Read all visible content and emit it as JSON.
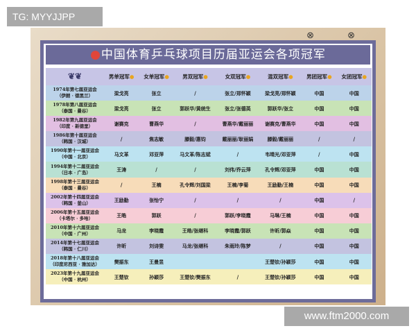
{
  "watermarks": {
    "top_left": "TG: MYYJJPP",
    "bottom_right": "www.ftm2000.com"
  },
  "title": "中国体育乒乓球项目历届亚运会各项冠军",
  "title_icon": "ping-pong-paddle-icon",
  "corner_icons": "⊗ ⊗",
  "headers": [
    "男单冠军",
    "女单冠军",
    "男双冠军",
    "女双冠军",
    "混双冠军",
    "男团冠军",
    "女团冠军"
  ],
  "header_ornament": "❦❦",
  "row_colors": [
    "#bcd3ea",
    "#c8e3b6",
    "#e2bfe2",
    "#c3c3e0",
    "#bde3f1",
    "#b9e1d3",
    "#f7dcb9",
    "#dcc2ea",
    "#f7cdd6",
    "#c8e3b6",
    "#c3c3e0",
    "#bde3f1",
    "#f6efbb"
  ],
  "rows": [
    {
      "event": "1974年第七届亚运会",
      "place": "（伊朗 · 德黑兰）",
      "cells": [
        "梁戈亮",
        "张立",
        "/",
        "张立/郑怀颖",
        "梁戈亮/郑怀颖",
        "中国",
        "中国"
      ]
    },
    {
      "event": "1978年第八届亚运会",
      "place": "（泰国 · 曼谷）",
      "cells": [
        "梁戈亮",
        "张立",
        "郭跃华/黄统生",
        "张立/张德英",
        "郭跃华/张立",
        "中国",
        "中国"
      ]
    },
    {
      "event": "1982年第九届亚运会",
      "place": "（印度 · 新德里）",
      "cells": [
        "谢赛克",
        "曹燕华",
        "/",
        "曹燕华/戴丽丽",
        "谢赛克/曹燕华",
        "中国",
        "中国"
      ]
    },
    {
      "event": "1986年第十届亚运会",
      "place": "（韩国 · 汉城）",
      "cells": [
        "/",
        "焦志敏",
        "滕毅/惠钧",
        "戴丽丽/耿丽娟",
        "滕毅/戴丽丽",
        "/",
        "/"
      ]
    },
    {
      "event": "1990年第十一届亚运会",
      "place": "（中国 · 北京）",
      "cells": [
        "马文革",
        "邓亚萍",
        "马文革/陈志斌",
        "/",
        "韦晴光/邓亚萍",
        "/",
        "中国"
      ]
    },
    {
      "event": "1994年第十二届亚运会",
      "place": "（日本 · 广岛）",
      "cells": [
        "王涛",
        "/",
        "/",
        "刘伟/乔云萍",
        "孔令辉/邓亚萍",
        "中国",
        "中国"
      ]
    },
    {
      "event": "1998年第十三届亚运会",
      "place": "（泰国 · 曼谷）",
      "cells": [
        "/",
        "王楠",
        "孔令辉/刘国梁",
        "王楠/李菊",
        "王励勤/王楠",
        "中国",
        "中国"
      ]
    },
    {
      "event": "2002年第十四届亚运会",
      "place": "（韩国 · 釜山）",
      "cells": [
        "王励勤",
        "张怡宁",
        "/",
        "/",
        "/",
        "中国",
        "/"
      ]
    },
    {
      "event": "2006年第十五届亚运会",
      "place": "（卡塔尔 · 多哈）",
      "cells": [
        "王皓",
        "郭跃",
        "/",
        "郭跃/李晓霞",
        "马琳/王楠",
        "中国",
        "中国"
      ]
    },
    {
      "event": "2010年第十六届亚运会",
      "place": "（中国 · 广州）",
      "cells": [
        "马龙",
        "李晓霞",
        "王皓/张继科",
        "李晓霞/郭跃",
        "许昕/郭焱",
        "中国",
        "中国"
      ]
    },
    {
      "event": "2014年第十七届亚运会",
      "place": "（韩国 · 仁川）",
      "cells": [
        "许昕",
        "刘诗雯",
        "马龙/张继科",
        "朱雨玲/陈梦",
        "/",
        "中国",
        "中国"
      ]
    },
    {
      "event": "2018年第十八届亚运会",
      "place": "（印度尼西亚 · 雅加达）",
      "cells": [
        "樊振东",
        "王曼昱",
        "",
        "",
        "王楚钦/孙颖莎",
        "中国",
        "中国"
      ]
    },
    {
      "event": "2023年第十九届亚运会",
      "place": "（中国 · 杭州）",
      "cells": [
        "王楚钦",
        "孙颖莎",
        "王楚钦/樊振东",
        "/",
        "王楚钦/孙颖莎",
        "中国",
        "中国"
      ]
    }
  ]
}
